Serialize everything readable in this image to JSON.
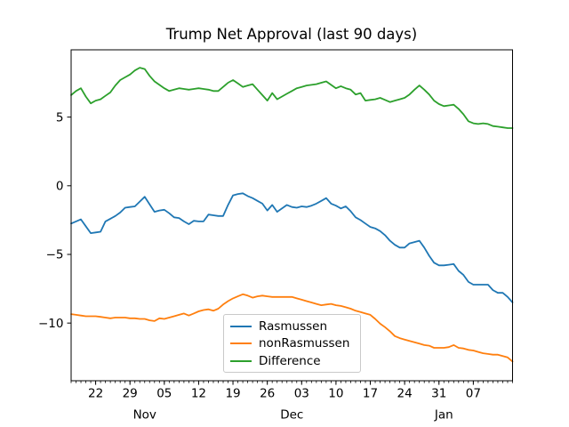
{
  "chart_data": {
    "type": "line",
    "title": "Trump Net Approval (last 90 days)",
    "grid": false,
    "background_color": "#ffffff",
    "x_axis": {
      "kind": "date",
      "sampling": "daily",
      "start_date": "Oct 17",
      "end_date": "Jan 15",
      "major_tick_labels": [
        "22",
        "29",
        "05",
        "12",
        "19",
        "26",
        "03",
        "10",
        "17",
        "24",
        "31",
        "07"
      ],
      "major_tick_day_index": [
        5,
        12,
        19,
        26,
        33,
        40,
        47,
        54,
        61,
        68,
        75,
        82
      ],
      "minor_ticks": "one per day",
      "month_labels": [
        {
          "text": "Nov",
          "day_index": 15
        },
        {
          "text": "Dec",
          "day_index": 45
        },
        {
          "text": "Jan",
          "day_index": 76
        }
      ]
    },
    "y_axis": {
      "tick_labels": [
        "5",
        "0",
        "−5",
        "−10"
      ],
      "tick_values": [
        5,
        0,
        -5,
        -10
      ],
      "ylim": [
        -14.2,
        9.9
      ]
    },
    "legend": {
      "position": "lower center",
      "entries": [
        "Rasmussen",
        "nonRasmussen",
        "Difference"
      ]
    },
    "dates": [
      "Oct 17",
      "Oct 18",
      "Oct 19",
      "Oct 20",
      "Oct 21",
      "Oct 22",
      "Oct 23",
      "Oct 24",
      "Oct 25",
      "Oct 26",
      "Oct 27",
      "Oct 28",
      "Oct 29",
      "Oct 30",
      "Oct 31",
      "Nov 01",
      "Nov 02",
      "Nov 03",
      "Nov 04",
      "Nov 05",
      "Nov 06",
      "Nov 07",
      "Nov 08",
      "Nov 09",
      "Nov 10",
      "Nov 11",
      "Nov 12",
      "Nov 13",
      "Nov 14",
      "Nov 15",
      "Nov 16",
      "Nov 17",
      "Nov 18",
      "Nov 19",
      "Nov 20",
      "Nov 21",
      "Nov 22",
      "Nov 23",
      "Nov 24",
      "Nov 25",
      "Nov 26",
      "Nov 27",
      "Nov 28",
      "Nov 29",
      "Nov 30",
      "Dec 01",
      "Dec 02",
      "Dec 03",
      "Dec 04",
      "Dec 05",
      "Dec 06",
      "Dec 07",
      "Dec 08",
      "Dec 09",
      "Dec 10",
      "Dec 11",
      "Dec 12",
      "Dec 13",
      "Dec 14",
      "Dec 15",
      "Dec 16",
      "Dec 17",
      "Dec 18",
      "Dec 19",
      "Dec 20",
      "Dec 21",
      "Dec 22",
      "Dec 23",
      "Dec 24",
      "Dec 25",
      "Dec 26",
      "Dec 27",
      "Dec 28",
      "Dec 29",
      "Dec 30",
      "Dec 31",
      "Jan 01",
      "Jan 02",
      "Jan 03",
      "Jan 04",
      "Jan 05",
      "Jan 06",
      "Jan 07",
      "Jan 08",
      "Jan 09",
      "Jan 10",
      "Jan 11",
      "Jan 12",
      "Jan 13",
      "Jan 14",
      "Jan 15"
    ],
    "series": [
      {
        "name": "Rasmussen",
        "color": "#1f77b4",
        "values": [
          -2.75,
          -2.6,
          -2.45,
          -2.95,
          -3.45,
          -3.4,
          -3.35,
          -2.6,
          -2.4,
          -2.2,
          -1.95,
          -1.6,
          -1.55,
          -1.5,
          -1.15,
          -0.8,
          -1.35,
          -1.9,
          -1.8,
          -1.75,
          -2.0,
          -2.3,
          -2.35,
          -2.6,
          -2.8,
          -2.55,
          -2.6,
          -2.6,
          -2.1,
          -2.15,
          -2.2,
          -2.2,
          -1.4,
          -0.7,
          -0.6,
          -0.55,
          -0.75,
          -0.9,
          -1.1,
          -1.3,
          -1.8,
          -1.4,
          -1.9,
          -1.65,
          -1.4,
          -1.55,
          -1.6,
          -1.5,
          -1.55,
          -1.45,
          -1.3,
          -1.1,
          -0.9,
          -1.3,
          -1.45,
          -1.65,
          -1.5,
          -1.85,
          -2.3,
          -2.5,
          -2.75,
          -3.0,
          -3.1,
          -3.3,
          -3.6,
          -4.0,
          -4.3,
          -4.5,
          -4.5,
          -4.2,
          -4.1,
          -4.0,
          -4.5,
          -5.1,
          -5.6,
          -5.8,
          -5.8,
          -5.75,
          -5.7,
          -6.2,
          -6.5,
          -7.0,
          -7.2,
          -7.2,
          -7.2,
          -7.2,
          -7.6,
          -7.8,
          -7.8,
          -8.1,
          -8.5
        ]
      },
      {
        "name": "nonRasmussen",
        "color": "#ff7f0e",
        "values": [
          -9.35,
          -9.4,
          -9.45,
          -9.5,
          -9.5,
          -9.5,
          -9.55,
          -9.6,
          -9.65,
          -9.6,
          -9.6,
          -9.6,
          -9.65,
          -9.65,
          -9.7,
          -9.7,
          -9.8,
          -9.85,
          -9.65,
          -9.7,
          -9.6,
          -9.5,
          -9.4,
          -9.3,
          -9.45,
          -9.3,
          -9.15,
          -9.05,
          -9.0,
          -9.1,
          -8.95,
          -8.65,
          -8.4,
          -8.2,
          -8.05,
          -7.9,
          -8.0,
          -8.15,
          -8.05,
          -8.0,
          -8.05,
          -8.1,
          -8.1,
          -8.1,
          -8.1,
          -8.1,
          -8.2,
          -8.3,
          -8.4,
          -8.5,
          -8.6,
          -8.7,
          -8.65,
          -8.6,
          -8.7,
          -8.75,
          -8.85,
          -8.95,
          -9.1,
          -9.2,
          -9.3,
          -9.4,
          -9.7,
          -10.05,
          -10.3,
          -10.6,
          -10.95,
          -11.1,
          -11.2,
          -11.3,
          -11.4,
          -11.5,
          -11.6,
          -11.65,
          -11.8,
          -11.8,
          -11.8,
          -11.75,
          -11.6,
          -11.8,
          -11.85,
          -11.95,
          -12.0,
          -12.1,
          -12.2,
          -12.25,
          -12.3,
          -12.3,
          -12.4,
          -12.5,
          -12.8
        ]
      },
      {
        "name": "Difference",
        "color": "#2ca02c",
        "values": [
          6.6,
          6.9,
          7.1,
          6.5,
          6.0,
          6.2,
          6.3,
          6.55,
          6.8,
          7.3,
          7.7,
          7.9,
          8.1,
          8.4,
          8.6,
          8.5,
          8.0,
          7.6,
          7.35,
          7.1,
          6.9,
          7.0,
          7.1,
          7.05,
          7.0,
          7.05,
          7.1,
          7.05,
          7.0,
          6.9,
          6.9,
          7.2,
          7.5,
          7.7,
          7.45,
          7.2,
          7.3,
          7.4,
          7.0,
          6.6,
          6.2,
          6.75,
          6.3,
          6.5,
          6.7,
          6.9,
          7.1,
          7.2,
          7.3,
          7.35,
          7.4,
          7.5,
          7.6,
          7.35,
          7.1,
          7.25,
          7.1,
          7.0,
          6.65,
          6.75,
          6.2,
          6.25,
          6.3,
          6.4,
          6.25,
          6.1,
          6.2,
          6.3,
          6.4,
          6.65,
          7.0,
          7.3,
          7.0,
          6.65,
          6.2,
          5.95,
          5.8,
          5.85,
          5.9,
          5.6,
          5.2,
          4.7,
          4.55,
          4.5,
          4.55,
          4.5,
          4.35,
          4.3,
          4.25,
          4.2,
          4.2
        ]
      }
    ]
  }
}
